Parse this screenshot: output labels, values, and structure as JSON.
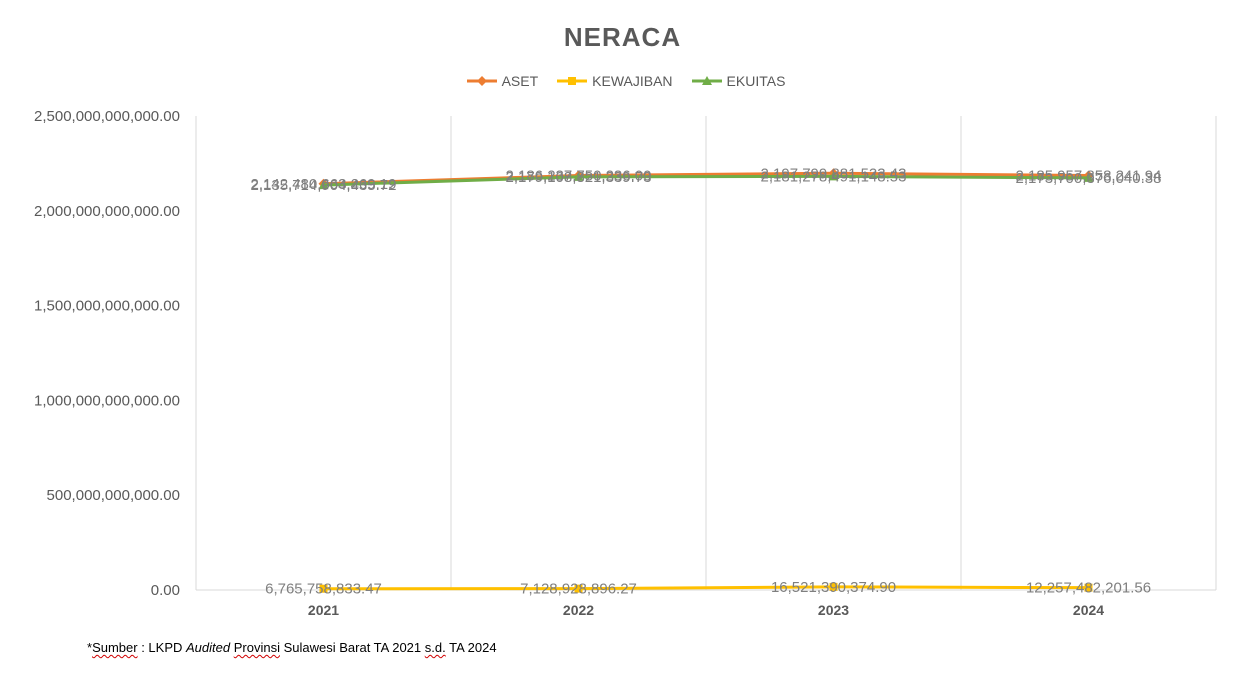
{
  "chart_data": {
    "type": "line",
    "title": "NERACA",
    "categories": [
      "2021",
      "2022",
      "2023",
      "2024"
    ],
    "y_tick_labels": [
      "0.00",
      "500,000,000,000.00",
      "1,000,000,000,000.00",
      "1,500,000,000,000.00",
      "2,000,000,000,000.00",
      "2,500,000,000,000.00"
    ],
    "y_ticks": [
      0,
      500000000000,
      1000000000000,
      1500000000000,
      2000000000000,
      2500000000000
    ],
    "ylim": [
      0,
      2500000000000
    ],
    "xlabel": "",
    "ylabel": "",
    "grid": "vertical",
    "legend_position": "top",
    "series": [
      {
        "name": "ASET",
        "color": "#ED7D31",
        "marker": "diamond",
        "values": [
          2142480663269.19,
          2186237750236.0,
          2197799881523.43,
          2185957858241.94
        ],
        "labels": [
          "2,142,480,663,269.19",
          "2,186,237,750,236.00",
          "2,197,799,881,523.43",
          "2,185,957,858,241.94"
        ]
      },
      {
        "name": "KEWAJIBAN",
        "color": "#FFC000",
        "marker": "square",
        "values": [
          6765758833.47,
          7128928896.27,
          16521390374.9,
          12257482201.56
        ],
        "labels": [
          "6,765,758,833.47",
          "7,128,928,896.27",
          "16,521,390,374.90",
          "12,257,482,201.56"
        ]
      },
      {
        "name": "EKUITAS",
        "color": "#70AD47",
        "marker": "triangle",
        "values": [
          2135714904435.72,
          2179108821339.73,
          2181278491148.53,
          2173700376040.38
        ],
        "labels": [
          "2,135,714,904,435.72",
          "2,179,108,821,339.73",
          "2,181,278,491,148.53",
          "2,173,700,376,040.38"
        ]
      }
    ]
  },
  "footnote": {
    "prefix": "*",
    "sumber": "Sumber",
    "part1": " : LKPD ",
    "audited": "Audited",
    "part2": " ",
    "provinsi": "Provinsi",
    "part3": " Sulawesi Barat TA 2021 ",
    "sd": "s.d.",
    "part4": " TA 2024"
  }
}
